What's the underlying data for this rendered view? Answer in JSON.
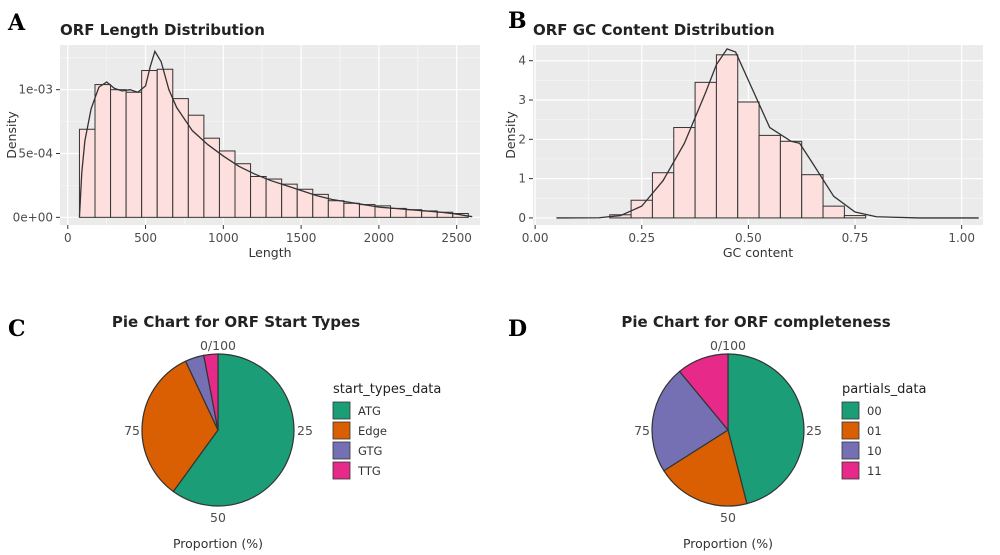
{
  "panels": {
    "A": {
      "letter": "A"
    },
    "B": {
      "letter": "B"
    },
    "C": {
      "letter": "C"
    },
    "D": {
      "letter": "D"
    }
  },
  "colors": {
    "panel_bg": "#ebebeb",
    "grid_major": "#ffffff",
    "grid_minor": "#f5f5f5",
    "bar_fill": "#fde0dd",
    "bar_stroke": "#333333",
    "density_line": "#333333",
    "pie_palette": [
      "#1b9e77",
      "#d95f02",
      "#7570b3",
      "#e7298a"
    ]
  },
  "chart_data": [
    {
      "id": "A",
      "type": "bar",
      "title": "ORF Length Distribution",
      "xlabel": "Length",
      "ylabel": "Density",
      "xlim": [
        -50,
        2650
      ],
      "ylim": [
        -6e-05,
        0.00135
      ],
      "xticks": [
        0,
        500,
        1000,
        1500,
        2000,
        2500
      ],
      "xtick_labels": [
        "0",
        "500",
        "1000",
        "1500",
        "2000",
        "2500"
      ],
      "yticks": [
        0,
        0.0005,
        0.001
      ],
      "ytick_labels": [
        "0e+00",
        "5e-04",
        "1e-03"
      ],
      "bin_edges": [
        75,
        175,
        275,
        375,
        475,
        575,
        675,
        775,
        875,
        975,
        1075,
        1175,
        1275,
        1375,
        1475,
        1575,
        1675,
        1775,
        1875,
        1975,
        2075,
        2175,
        2275,
        2375,
        2475,
        2575
      ],
      "values": [
        0.00069,
        0.00104,
        0.001,
        0.00098,
        0.00115,
        0.00116,
        0.00093,
        0.0008,
        0.00062,
        0.00052,
        0.00042,
        0.00032,
        0.0003,
        0.00026,
        0.00022,
        0.00018,
        0.00013,
        0.00011,
        0.0001,
        9e-05,
        7e-05,
        6e-05,
        5e-05,
        4e-05,
        3e-05
      ],
      "density_x": [
        75,
        90,
        110,
        150,
        200,
        250,
        300,
        350,
        400,
        450,
        500,
        530,
        560,
        600,
        650,
        700,
        800,
        900,
        1000,
        1100,
        1200,
        1300,
        1400,
        1500,
        1600,
        1700,
        1800,
        1900,
        2000,
        2100,
        2200,
        2300,
        2400,
        2500,
        2550,
        2600
      ],
      "density_y": [
        0,
        0.00035,
        0.0006,
        0.00085,
        0.00102,
        0.00106,
        0.00101,
        0.00099,
        0.001,
        0.00098,
        0.00103,
        0.00118,
        0.0013,
        0.00122,
        0.001,
        0.00086,
        0.00068,
        0.00057,
        0.00048,
        0.0004,
        0.00034,
        0.00029,
        0.00025,
        0.00021,
        0.00017,
        0.00014,
        0.00012,
        0.0001,
        8e-05,
        7e-05,
        6e-05,
        5e-05,
        4e-05,
        2.5e-05,
        1.5e-05,
        5e-06
      ]
    },
    {
      "id": "B",
      "type": "bar",
      "title": "ORF GC Content Distribution",
      "xlabel": "GC content",
      "ylabel": "Density",
      "xlim": [
        -0.005,
        1.05
      ],
      "ylim": [
        -0.18,
        4.4
      ],
      "xticks": [
        0,
        0.25,
        0.5,
        0.75,
        1
      ],
      "xtick_labels": [
        "0.00",
        "0.25",
        "0.50",
        "0.75",
        "1.00"
      ],
      "yticks": [
        0,
        1,
        2,
        3,
        4
      ],
      "ytick_labels": [
        "0",
        "1",
        "2",
        "3",
        "4"
      ],
      "bin_edges": [
        0.175,
        0.225,
        0.275,
        0.325,
        0.375,
        0.425,
        0.475,
        0.525,
        0.575,
        0.625,
        0.675,
        0.725,
        0.775
      ],
      "values": [
        0.08,
        0.45,
        1.15,
        2.3,
        3.45,
        4.15,
        2.95,
        2.1,
        1.95,
        1.1,
        0.3,
        0.06
      ],
      "density_x": [
        0.05,
        0.15,
        0.2,
        0.25,
        0.3,
        0.35,
        0.4,
        0.425,
        0.45,
        0.47,
        0.5,
        0.55,
        0.6,
        0.62,
        0.65,
        0.7,
        0.75,
        0.8,
        0.9,
        1.04
      ],
      "density_y": [
        0,
        0.005,
        0.06,
        0.3,
        0.95,
        1.9,
        3.2,
        3.9,
        4.3,
        4.22,
        3.5,
        2.3,
        1.95,
        1.9,
        1.4,
        0.55,
        0.15,
        0.03,
        0,
        0
      ]
    },
    {
      "id": "C",
      "type": "pie",
      "title": "Pie Chart for ORF Start Types",
      "xlabel": "Proportion (%)",
      "tick_labels": [
        "0/100",
        "25",
        "50",
        "75"
      ],
      "legend_title": "start_types_data",
      "legend_position": "right",
      "categories": [
        "ATG",
        "Edge",
        "GTG",
        "TTG"
      ],
      "values": [
        60,
        33,
        4,
        3
      ]
    },
    {
      "id": "D",
      "type": "pie",
      "title": "Pie Chart for ORF completeness",
      "xlabel": "Proportion (%)",
      "tick_labels": [
        "0/100",
        "25",
        "50",
        "75"
      ],
      "legend_title": "partials_data",
      "legend_position": "right",
      "categories": [
        "00",
        "01",
        "10",
        "11"
      ],
      "values": [
        46,
        20,
        23,
        11
      ]
    }
  ]
}
